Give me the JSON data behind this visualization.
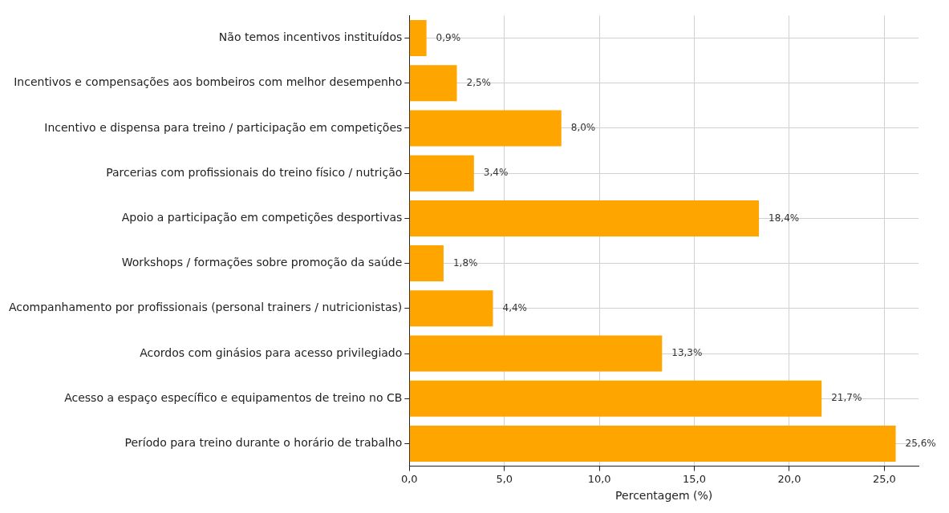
{
  "chart_data": {
    "type": "bar",
    "orientation": "horizontal",
    "xlabel": "Percentagem (%)",
    "categories": [
      "Não temos incentivos instituídos",
      "Incentivos e compensações aos bombeiros com melhor desempenho",
      "Incentivo e dispensa para treino / participação em competições",
      "Parcerias com profissionais do treino físico / nutrição",
      "Apoio a participação em competições desportivas",
      "Workshops / formações sobre promoção da saúde",
      "Acompanhamento por profissionais (personal trainers / nutricionistas)",
      "Acordos com ginásios para acesso privilegiado",
      "Acesso a espaço específico e equipamentos de treino no CB",
      "Período para treino durante o horário de trabalho"
    ],
    "values": [
      0.9,
      2.5,
      8.0,
      3.4,
      18.4,
      1.8,
      4.4,
      13.3,
      21.7,
      25.6
    ],
    "value_labels": [
      "0,9%",
      "2,5%",
      "8,0%",
      "3,4%",
      "18,4%",
      "1,8%",
      "4,4%",
      "13,3%",
      "21,7%",
      "25,6%"
    ],
    "color": "#ffa500",
    "xlim": [
      0,
      26.8
    ],
    "xticks": [
      {
        "value": 0,
        "label": "0,0"
      },
      {
        "value": 5,
        "label": "5,0"
      },
      {
        "value": 10,
        "label": "10,0"
      },
      {
        "value": 15,
        "label": "15,0"
      },
      {
        "value": 20,
        "label": "20,0"
      },
      {
        "value": 25,
        "label": "25,0"
      }
    ],
    "grid": true,
    "legend": false
  }
}
